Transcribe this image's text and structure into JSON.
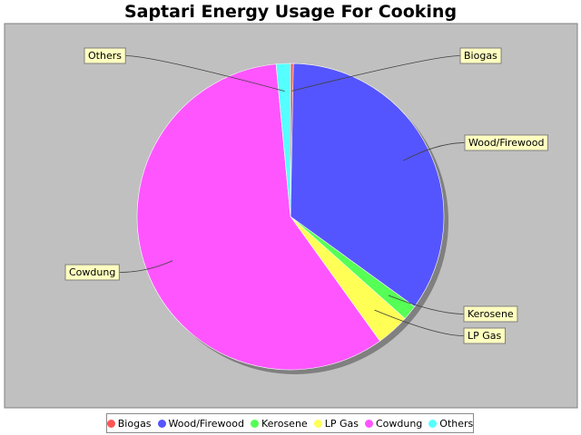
{
  "chart_data": {
    "type": "pie",
    "title": "Saptari Energy Usage For Cooking",
    "slices": [
      {
        "label": "Biogas",
        "value": 0.3,
        "color": "#ff5555"
      },
      {
        "label": "Wood/Firewood",
        "value": 34.7,
        "color": "#5555ff"
      },
      {
        "label": "Kerosene",
        "value": 1.6,
        "color": "#55ff55"
      },
      {
        "label": "LP Gas",
        "value": 3.5,
        "color": "#ffff55"
      },
      {
        "label": "Cowdung",
        "value": 58.4,
        "color": "#ff55ff"
      },
      {
        "label": "Others",
        "value": 1.5,
        "color": "#55ffff"
      }
    ],
    "legend_position": "bottom",
    "background": "#c0c0c0"
  }
}
